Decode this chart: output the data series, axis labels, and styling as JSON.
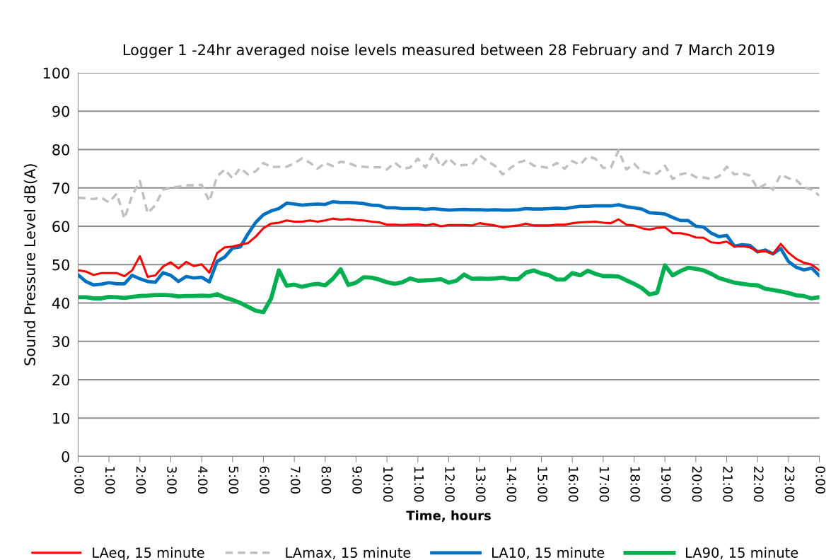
{
  "chart_data": {
    "type": "line",
    "title": "Logger 1 -24hr averaged noise levels measured between 28 February and 7 March 2019",
    "xlabel": "Time, hours",
    "ylabel": "Sound Pressure Level dB(A)",
    "categories": [
      "0:00",
      null,
      null,
      null,
      "1:00",
      null,
      null,
      null,
      "2:00",
      null,
      null,
      null,
      "3:00",
      null,
      null,
      null,
      "4:00",
      null,
      null,
      null,
      "5:00",
      null,
      null,
      null,
      "6:00",
      null,
      null,
      null,
      "7:00",
      null,
      null,
      null,
      "8:00",
      null,
      null,
      null,
      "9:00",
      null,
      null,
      null,
      "10:00",
      null,
      null,
      null,
      "11:00",
      null,
      null,
      null,
      "12:00",
      null,
      null,
      null,
      "13:00",
      null,
      null,
      null,
      "14:00",
      null,
      null,
      null,
      "15:00",
      null,
      null,
      null,
      "16:00",
      null,
      null,
      null,
      "17:00",
      null,
      null,
      null,
      "18:00",
      null,
      null,
      null,
      "19:00",
      null,
      null,
      null,
      "20:00",
      null,
      null,
      null,
      "21:00",
      null,
      null,
      null,
      "22:00",
      null,
      null,
      null,
      "23:00",
      null,
      null,
      null,
      "0:00"
    ],
    "series": [
      {
        "name": "LAeq, 15 minute",
        "color": "#ff0000",
        "line_style": "solid",
        "values": [
          48.5,
          48.2,
          47.3,
          47.8,
          47.8,
          47.8,
          47.0,
          48.5,
          52.2,
          46.8,
          47.2,
          49.5,
          50.6,
          49.0,
          50.7,
          49.6,
          50.1,
          47.9,
          53.0,
          54.5,
          54.7,
          55.2,
          55.6,
          57.3,
          59.5,
          60.7,
          60.9,
          61.5,
          61.2,
          61.2,
          61.5,
          61.2,
          61.5,
          62.0,
          61.7,
          61.9,
          61.6,
          61.5,
          61.2,
          61.0,
          60.4,
          60.4,
          60.3,
          60.4,
          60.5,
          60.2,
          60.6,
          60.0,
          60.3,
          60.3,
          60.3,
          60.2,
          60.8,
          60.5,
          60.2,
          59.7,
          60.0,
          60.2,
          60.7,
          60.2,
          60.2,
          60.2,
          60.4,
          60.4,
          60.8,
          61.0,
          61.1,
          61.2,
          60.9,
          60.8,
          61.8,
          60.4,
          60.2,
          59.5,
          59.1,
          59.6,
          59.7,
          58.2,
          58.2,
          57.8,
          57.1,
          57.0,
          55.8,
          55.6,
          56.0,
          54.7,
          54.8,
          54.5,
          53.4,
          53.5,
          52.8,
          55.4,
          53.1,
          51.5,
          50.5,
          50.0,
          48.5
        ]
      },
      {
        "name": "LAmax, 15 minute",
        "color": "#c0c0c0",
        "line_style": "dashed",
        "values": [
          67.4,
          67.3,
          67.1,
          67.5,
          66.2,
          68.5,
          62.0,
          68.0,
          71.8,
          63.4,
          65.5,
          69.5,
          70.0,
          70.3,
          70.7,
          70.7,
          70.8,
          66.5,
          73.0,
          74.8,
          72.5,
          75.2,
          73.5,
          74.3,
          76.5,
          75.4,
          75.5,
          75.5,
          76.4,
          77.7,
          76.6,
          75.0,
          76.5,
          75.7,
          76.8,
          76.5,
          75.7,
          75.5,
          75.3,
          75.4,
          74.8,
          76.6,
          75.0,
          75.3,
          77.6,
          75.3,
          79.0,
          75.5,
          77.7,
          75.8,
          76.0,
          76.0,
          78.5,
          77.0,
          75.7,
          73.5,
          75.2,
          76.6,
          77.2,
          75.8,
          75.5,
          75.2,
          76.5,
          75.0,
          77.0,
          76.0,
          78.2,
          77.6,
          75.2,
          75.3,
          79.8,
          74.8,
          76.3,
          74.3,
          73.8,
          73.7,
          75.8,
          72.3,
          73.5,
          74.0,
          72.8,
          72.7,
          72.3,
          73.0,
          75.5,
          73.5,
          73.8,
          73.2,
          69.8,
          70.9,
          69.5,
          73.5,
          72.5,
          72.0,
          70.2,
          69.5,
          68.0
        ]
      },
      {
        "name": "LA10, 15 minute",
        "color": "#0070c0",
        "line_style": "solid",
        "values": [
          47.3,
          45.6,
          44.7,
          44.9,
          45.3,
          45.0,
          45.0,
          47.2,
          46.3,
          45.6,
          45.4,
          47.9,
          47.2,
          45.6,
          46.9,
          46.5,
          46.7,
          45.5,
          50.8,
          52.0,
          54.3,
          54.6,
          58.0,
          61.0,
          63.0,
          64.0,
          64.6,
          66.0,
          65.8,
          65.5,
          65.7,
          65.8,
          65.7,
          66.4,
          66.2,
          66.2,
          66.1,
          65.9,
          65.5,
          65.4,
          64.8,
          64.8,
          64.6,
          64.6,
          64.6,
          64.4,
          64.6,
          64.4,
          64.2,
          64.3,
          64.4,
          64.3,
          64.3,
          64.2,
          64.3,
          64.2,
          64.2,
          64.3,
          64.6,
          64.5,
          64.5,
          64.6,
          64.7,
          64.6,
          64.9,
          65.2,
          65.2,
          65.3,
          65.3,
          65.3,
          65.6,
          65.1,
          64.8,
          64.5,
          63.5,
          63.4,
          63.2,
          62.3,
          61.5,
          61.5,
          60.0,
          59.8,
          58.2,
          57.3,
          57.6,
          54.8,
          55.2,
          55.0,
          53.3,
          53.8,
          52.8,
          54.2,
          50.8,
          49.3,
          48.6,
          49.1,
          47.1
        ]
      },
      {
        "name": "LA90, 15 minute",
        "color": "#00b050",
        "line_style": "solid",
        "values": [
          41.5,
          41.5,
          41.2,
          41.2,
          41.6,
          41.5,
          41.3,
          41.6,
          41.8,
          41.9,
          42.1,
          42.1,
          42.0,
          41.7,
          41.8,
          41.8,
          41.9,
          41.8,
          42.3,
          41.4,
          40.8,
          40.0,
          39.0,
          38.0,
          37.6,
          41.2,
          48.5,
          44.5,
          44.8,
          44.2,
          44.7,
          45.0,
          44.6,
          46.3,
          48.8,
          44.7,
          45.3,
          46.7,
          46.6,
          46.1,
          45.4,
          45.0,
          45.4,
          46.4,
          45.8,
          45.9,
          46.0,
          46.2,
          45.3,
          45.8,
          47.4,
          46.3,
          46.4,
          46.3,
          46.4,
          46.6,
          46.2,
          46.2,
          47.9,
          48.5,
          47.7,
          47.2,
          46.1,
          46.1,
          47.8,
          47.2,
          48.4,
          47.6,
          47.0,
          47.0,
          46.9,
          45.9,
          45.0,
          43.9,
          42.2,
          42.7,
          49.8,
          47.2,
          48.3,
          49.2,
          48.9,
          48.5,
          47.6,
          46.5,
          45.9,
          45.3,
          45.0,
          44.7,
          44.6,
          43.7,
          43.4,
          43.0,
          42.6,
          42.0,
          41.8,
          41.2,
          41.5
        ]
      }
    ],
    "ylim": [
      0,
      100
    ],
    "yticks": [
      0,
      10,
      20,
      30,
      40,
      50,
      60,
      70,
      80,
      90,
      100
    ],
    "grid": "y",
    "legend": "bottom",
    "marker": "none"
  }
}
